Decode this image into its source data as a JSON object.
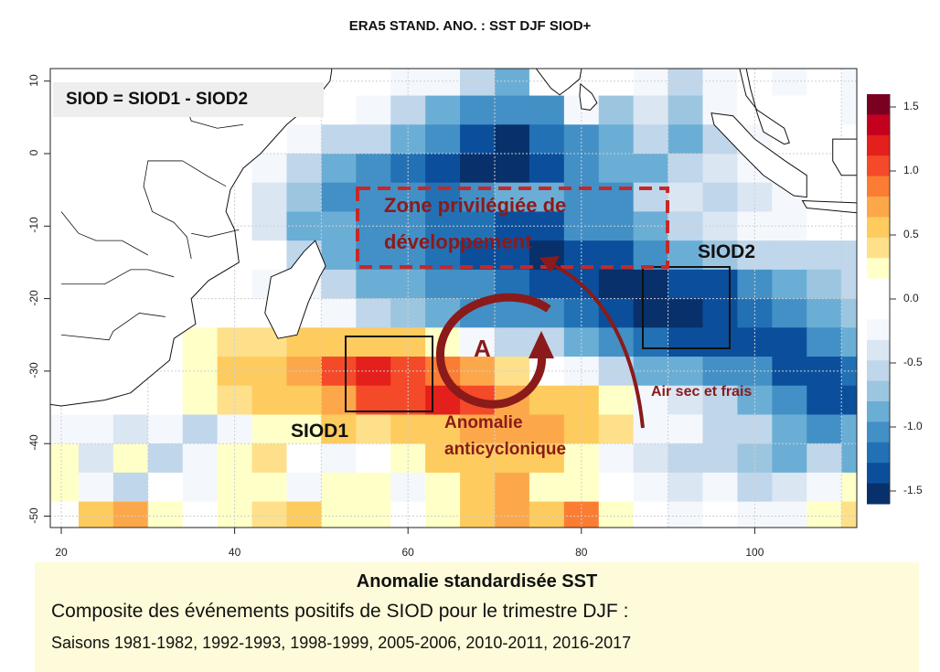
{
  "title": "ERA5 STAND. ANO. :  SST DJF SIOD+",
  "formula": "SIOD = SIOD1 - SIOD2",
  "annotations": {
    "zone": "Zone privilégiée de",
    "zone2": "développement",
    "siod1": "SIOD1",
    "siod2": "SIOD2",
    "anticyclone_letter": "A",
    "anomalie": "Anomalie",
    "anticyclonique": "anticyclonique",
    "air": "Air sec et frais"
  },
  "caption": {
    "line1": "Anomalie standardisée SST",
    "line2": "Composite des événements positifs de SIOD pour le trimestre  DJF :",
    "line3": "Saisons 1981-1982, 1992-1993, 1998-1999, 2005-2006, 2010-2011, 2016-2017"
  },
  "colors": {
    "annotation": "#8b1a1a",
    "caption_bg": "#fdfbd9"
  },
  "chart_data": {
    "type": "heatmap",
    "x_ticks": [
      "20",
      "40",
      "60",
      "80",
      "100"
    ],
    "y_ticks": [
      "10",
      "0",
      "-10",
      "-20",
      "-30",
      "-40",
      "-50"
    ],
    "x_range": [
      19,
      112
    ],
    "y_range": [
      -52,
      12
    ],
    "colorbar_ticks": [
      "1.5",
      "1.0",
      "0.5",
      "0.0",
      "-0.5",
      "-1.0",
      "-1.5"
    ],
    "colorbar_range": [
      -1.6,
      1.6
    ],
    "palette": [
      "#7a0022",
      "#c4001e",
      "#e3201b",
      "#f44a2a",
      "#fb7d34",
      "#fca84a",
      "#fdcb5e",
      "#fee08b",
      "#ffffc8",
      "#ffffff",
      "#ffffff",
      "#f4f8fd",
      "#dbe6f3",
      "#c0d6ea",
      "#9cc6e0",
      "#6aaed6",
      "#4390c6",
      "#2271b5",
      "#0b4f9c",
      "#08306b"
    ],
    "lon_start": 18,
    "lon_step": 4,
    "lat_start": 12,
    "lat_step": 4,
    "values": [
      [
        0,
        0,
        0,
        0,
        0,
        0,
        0,
        0,
        0,
        0,
        -0.3,
        -0.3,
        -0.5,
        -0.8,
        0,
        0,
        0,
        -0.3,
        -0.6,
        -0.2,
        0,
        -0.3,
        0,
        -0.3
      ],
      [
        0,
        0,
        0,
        0,
        0,
        0,
        0,
        0,
        0,
        -0.2,
        -0.5,
        -0.8,
        -1.0,
        -1.1,
        -1.0,
        -0.3,
        -0.7,
        -0.4,
        -0.7,
        -0.3,
        0,
        0,
        0,
        -0.2
      ],
      [
        0,
        0,
        0,
        0,
        0,
        0,
        0,
        -0.2,
        -0.5,
        -0.6,
        -0.9,
        -1.1,
        -1.4,
        -1.5,
        -1.2,
        -1.0,
        -0.8,
        -0.6,
        -0.8,
        -0.5,
        -0.3,
        0,
        0,
        0
      ],
      [
        0,
        0,
        0,
        0,
        0,
        0,
        -0.3,
        -0.6,
        -0.8,
        -1.0,
        -1.2,
        -1.4,
        -1.5,
        -1.5,
        -1.3,
        -1.0,
        -0.9,
        -0.8,
        -0.6,
        -0.4,
        -0.3,
        0,
        0,
        0
      ],
      [
        0,
        0,
        0,
        0,
        0,
        0,
        -0.4,
        -0.7,
        -1.0,
        -1.0,
        -1.1,
        -1.2,
        -1.0,
        -0.9,
        -0.8,
        -1.0,
        -1.0,
        -0.6,
        -0.4,
        -0.5,
        -0.4,
        -0.2,
        0,
        0
      ],
      [
        0,
        0,
        0,
        0,
        0,
        0,
        -0.4,
        -0.8,
        -0.9,
        -1.0,
        -1.1,
        -1.2,
        -1.2,
        -1.4,
        -1.3,
        -1.1,
        -1.0,
        -0.8,
        -0.5,
        -0.4,
        -0.3,
        -0.2,
        0,
        -0.1
      ],
      [
        0,
        0,
        0,
        0,
        0,
        0,
        0,
        -0.6,
        -0.8,
        -1.0,
        -1.1,
        -1.2,
        -1.3,
        -1.4,
        -1.5,
        -1.4,
        -1.3,
        -1.1,
        -0.9,
        -0.7,
        -0.6,
        -0.6,
        -0.5,
        -0.6
      ],
      [
        0,
        0,
        0,
        0,
        0,
        0,
        -0.2,
        -0.3,
        -0.6,
        -0.8,
        -0.9,
        -1.0,
        -1.1,
        -1.2,
        -1.3,
        -1.4,
        -1.5,
        -1.5,
        -1.4,
        -1.3,
        -1.1,
        -0.9,
        -0.7,
        -0.6
      ],
      [
        0,
        0,
        0,
        0,
        0,
        -0.1,
        0,
        -0.1,
        -0.2,
        -0.6,
        -0.7,
        -0.8,
        -1.0,
        -1.1,
        -1.0,
        -1.2,
        -1.4,
        -1.5,
        -1.5,
        -1.4,
        -1.2,
        -1.0,
        -0.8,
        -0.7
      ],
      [
        0,
        0,
        0,
        0,
        0.3,
        0.4,
        0.4,
        0.5,
        0.5,
        0.6,
        0.5,
        0.3,
        -0.3,
        -0.5,
        -0.6,
        -0.8,
        -1.0,
        -1.2,
        -1.3,
        -1.4,
        -1.4,
        -1.3,
        -1.0,
        -0.8
      ],
      [
        0,
        0,
        0,
        0,
        0.3,
        0.5,
        0.6,
        0.8,
        1.0,
        1.2,
        1.0,
        0.9,
        0.7,
        0.4,
        0.1,
        -0.3,
        -0.5,
        -0.8,
        -0.9,
        -1.0,
        -1.1,
        -1.3,
        -1.4,
        -1.2
      ],
      [
        0,
        0,
        0,
        0.1,
        0.2,
        0.4,
        0.5,
        0.6,
        0.8,
        1.0,
        1.1,
        1.2,
        1.0,
        0.8,
        0.6,
        0.5,
        0.2,
        -0.2,
        -0.4,
        -0.6,
        -0.8,
        -1.1,
        -1.3,
        -1.4
      ],
      [
        -0.3,
        -0.2,
        -0.4,
        -0.3,
        -0.5,
        -0.2,
        0.2,
        0.3,
        0.5,
        0.4,
        0.6,
        0.6,
        0.8,
        0.7,
        0.7,
        0.6,
        0.4,
        -0.2,
        -0.3,
        -0.5,
        -0.6,
        -0.8,
        -1.0,
        -0.9
      ],
      [
        0.3,
        -0.4,
        0.2,
        -0.6,
        -0.3,
        0.2,
        0.4,
        0.1,
        -0.2,
        0.1,
        0.3,
        0.5,
        0.6,
        0.6,
        0.5,
        0.3,
        -0.2,
        -0.4,
        -0.5,
        -0.6,
        -0.7,
        -0.8,
        -0.6,
        -0.8
      ],
      [
        0.2,
        -0.3,
        -0.5,
        0.1,
        -0.2,
        0.2,
        0.3,
        -0.2,
        0.3,
        0.2,
        -0.2,
        0.3,
        0.5,
        0.8,
        0.3,
        0.2,
        0.1,
        -0.3,
        -0.4,
        -0.3,
        -0.5,
        -0.4,
        -0.2,
        0.3
      ],
      [
        0.1,
        0.5,
        0.8,
        0.2,
        0,
        0.3,
        0.4,
        0.5,
        0.3,
        0.2,
        0,
        0.3,
        0.5,
        0.8,
        0.6,
        0.9,
        0.3,
        0,
        -0.2,
        0,
        -0.2,
        -0.3,
        0.2,
        0.4
      ]
    ]
  }
}
